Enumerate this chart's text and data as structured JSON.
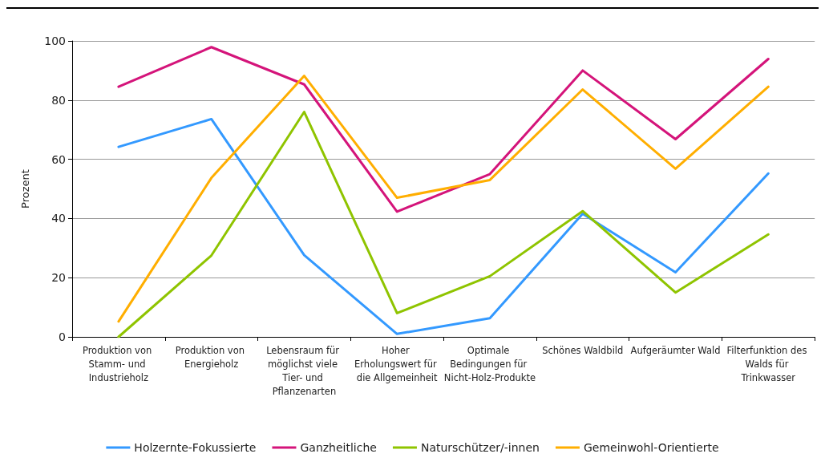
{
  "chart_data": {
    "type": "line",
    "ylabel": "Prozent",
    "categories": [
      "Produktion von Stamm- und Industrieholz",
      "Produktion von Energieholz",
      "Lebensraum für möglichst viele Tier- und Pflanzenarten",
      "Hoher Erholungswert für die Allgemeinheit",
      "Optimale Bedingungen für Nicht-Holz-Produkte",
      "Schönes Waldbild",
      "Aufgeräumter Wald",
      "Filterfunktion des Walds für Trinkwasser"
    ],
    "series": [
      {
        "name": "Holzernte-Fokussierte",
        "color": "#3399ff",
        "values": [
          64.2,
          73.6,
          27.6,
          1,
          6.3,
          41.6,
          21.8,
          55.2
        ]
      },
      {
        "name": "Ganzheitliche",
        "color": "#d4147a",
        "values": [
          84.5,
          97.9,
          85.3,
          42.3,
          55,
          90,
          66.8,
          93.9
        ]
      },
      {
        "name": "Naturschützer/-innen",
        "color": "#8fc400",
        "values": [
          0,
          27.5,
          76,
          8,
          20.5,
          42.5,
          15,
          34.6
        ]
      },
      {
        "name": "Gemeinwohl-Orientierte",
        "color": "#ffae00",
        "values": [
          5.2,
          53.7,
          88.2,
          47,
          53,
          83.6,
          56.8,
          84.5
        ]
      }
    ],
    "ylim": [
      0,
      100
    ],
    "yticks": [
      0,
      20,
      40,
      60,
      80,
      100
    ],
    "grid": "y",
    "legend": "bottom",
    "marker": "none",
    "line_style": "solid"
  }
}
